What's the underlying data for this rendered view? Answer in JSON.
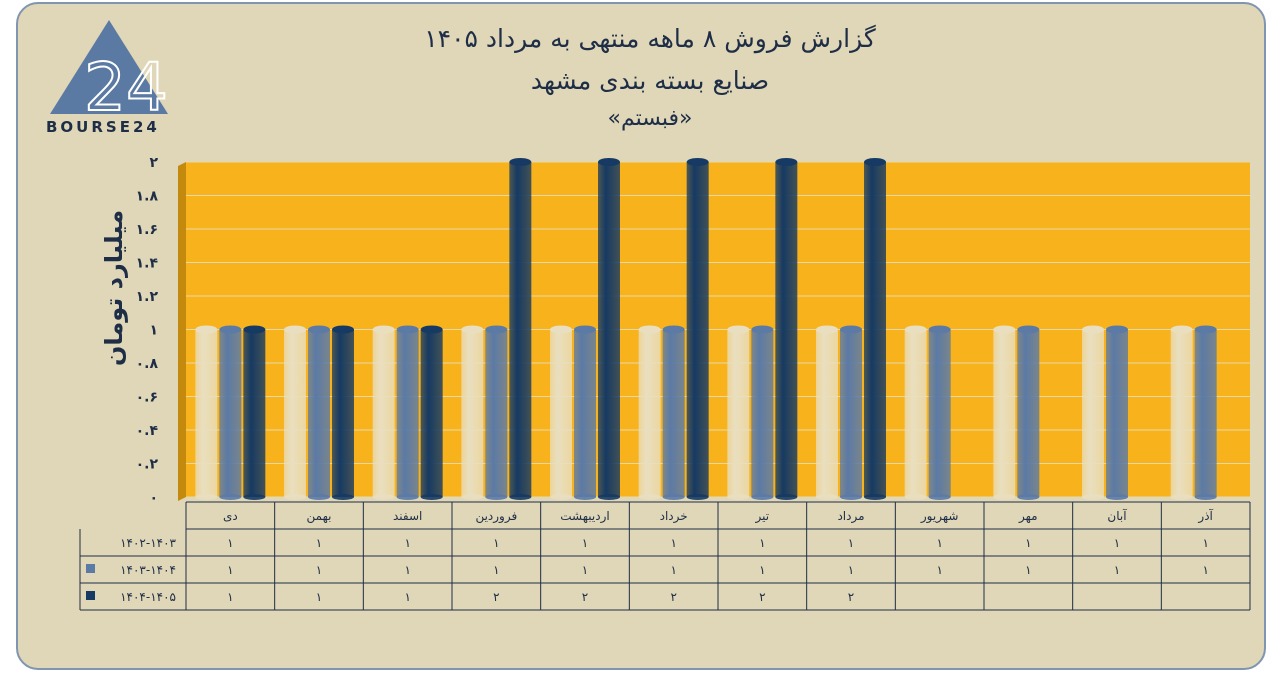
{
  "header": {
    "title_line1": "گزارش  فروش ۸ ماهه منتهی به مرداد ۱۴۰۵",
    "title_line2": "صنایع بسته بندی مشهد",
    "title_line3": "«فبستم»"
  },
  "brand": {
    "logo_number": "24",
    "name": "BOURSE24"
  },
  "colors": {
    "plot_bg": "#f7b21c",
    "card_bg": "#e0d6b8",
    "series_1": "#e9dfc0",
    "series_2": "#5b7aa6",
    "series_3": "#163a63"
  },
  "chart_data": {
    "type": "bar",
    "ylabel": "میلیارد تومان",
    "ylim": [
      0,
      2
    ],
    "y_ticks": [
      "۰",
      "۰.۲",
      "۰.۴",
      "۰.۶",
      "۰.۸",
      "۱",
      "۱.۲",
      "۱.۴",
      "۱.۶",
      "۱.۸",
      "۲"
    ],
    "y_tick_values": [
      0,
      0.2,
      0.4,
      0.6,
      0.8,
      1,
      1.2,
      1.4,
      1.6,
      1.8,
      2
    ],
    "grid": true,
    "categories": [
      "دی",
      "بهمن",
      "اسفند",
      "فروردین",
      "اردیبهشت",
      "خرداد",
      "تیر",
      "مرداد",
      "شهریور",
      "مهر",
      "آبان",
      "آذر"
    ],
    "series": [
      {
        "name": "۱۴۰۲-۱۴۰۳",
        "values": [
          1,
          1,
          1,
          1,
          1,
          1,
          1,
          1,
          1,
          1,
          1,
          1
        ],
        "labels": [
          "۱",
          "۱",
          "۱",
          "۱",
          "۱",
          "۱",
          "۱",
          "۱",
          "۱",
          "۱",
          "۱",
          "۱"
        ]
      },
      {
        "name": "۱۴۰۳-۱۴۰۴",
        "values": [
          1,
          1,
          1,
          1,
          1,
          1,
          1,
          1,
          1,
          1,
          1,
          1
        ],
        "labels": [
          "۱",
          "۱",
          "۱",
          "۱",
          "۱",
          "۱",
          "۱",
          "۱",
          "۱",
          "۱",
          "۱",
          "۱"
        ]
      },
      {
        "name": "۱۴۰۴-۱۴۰۵",
        "values": [
          1,
          1,
          1,
          2,
          2,
          2,
          2,
          2,
          null,
          null,
          null,
          null
        ],
        "labels": [
          "۱",
          "۱",
          "۱",
          "۲",
          "۲",
          "۲",
          "۲",
          "۲",
          "",
          "",
          "",
          ""
        ]
      }
    ]
  }
}
